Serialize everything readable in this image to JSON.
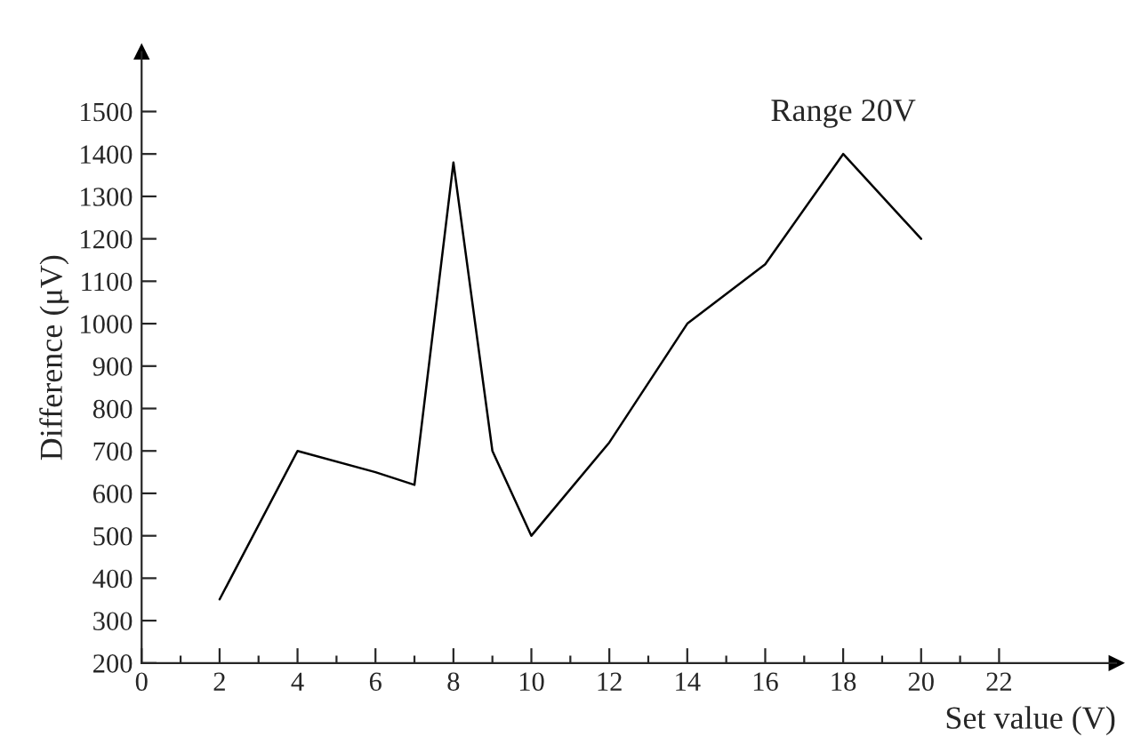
{
  "chart_data": {
    "type": "line",
    "xlabel": "Set value (V)",
    "ylabel": "Difference (μV)",
    "annotations": [
      "Range 20V"
    ],
    "x": [
      2,
      4,
      6,
      7,
      8,
      9,
      10,
      12,
      14,
      16,
      18,
      20
    ],
    "series": [
      {
        "color": "#000000",
        "values": [
          350,
          700,
          650,
          620,
          1380,
          700,
          500,
          720,
          1000,
          1140,
          1400,
          1200
        ]
      }
    ],
    "xlim": [
      0,
      25
    ],
    "ylim": [
      200,
      1640
    ],
    "xticks": [
      0,
      {
        "value": 1,
        "label": null
      },
      2,
      {
        "value": 3,
        "label": null
      },
      4,
      {
        "value": 5,
        "label": null
      },
      6,
      {
        "value": 7,
        "label": null
      },
      8,
      {
        "value": 9,
        "label": null
      },
      10,
      {
        "value": 11,
        "label": null
      },
      12,
      {
        "value": 13,
        "label": null
      },
      14,
      {
        "value": 15,
        "label": null
      },
      16,
      {
        "value": 17,
        "label": null
      },
      18,
      {
        "value": 19,
        "label": null
      },
      20,
      {
        "value": 21,
        "label": null
      },
      22
    ],
    "yticks": [
      200,
      300,
      400,
      500,
      600,
      700,
      800,
      900,
      1000,
      1100,
      1200,
      1300,
      1400,
      1500
    ],
    "grid": false,
    "legend": false,
    "marker": "none",
    "line_style": "solid"
  }
}
